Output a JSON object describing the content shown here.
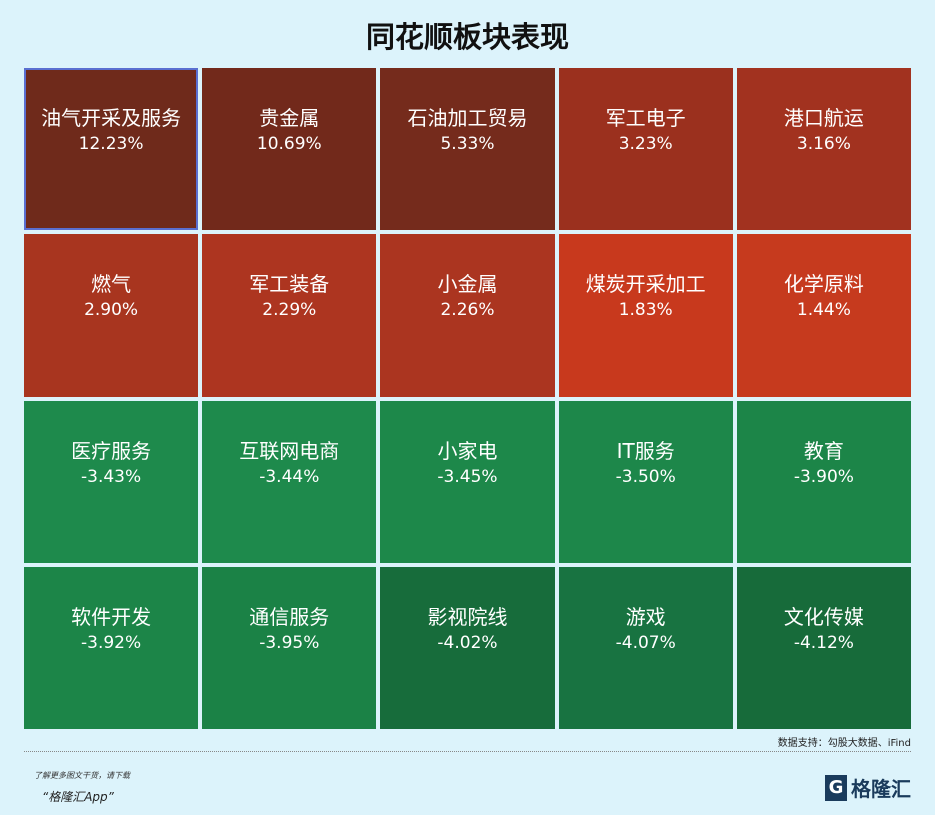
{
  "chart_data": {
    "type": "heatmap",
    "title": "同花顺板块表现",
    "cells": [
      {
        "name": "油气开采及服务",
        "value": "12.23%",
        "color": "#6f2a1b"
      },
      {
        "name": "贵金属",
        "value": "10.69%",
        "color": "#72291b"
      },
      {
        "name": "石油加工贸易",
        "value": "5.33%",
        "color": "#752b1c"
      },
      {
        "name": "军工电子",
        "value": "3.23%",
        "color": "#9b301e"
      },
      {
        "name": "港口航运",
        "value": "3.16%",
        "color": "#a2321f"
      },
      {
        "name": "燃气",
        "value": "2.90%",
        "color": "#a8351f"
      },
      {
        "name": "军工装备",
        "value": "2.29%",
        "color": "#ad3520"
      },
      {
        "name": "小金属",
        "value": "2.26%",
        "color": "#ab3520"
      },
      {
        "name": "煤炭开采加工",
        "value": "1.83%",
        "color": "#c8391d"
      },
      {
        "name": "化学原料",
        "value": "1.44%",
        "color": "#c63a1e"
      },
      {
        "name": "医疗服务",
        "value": "-3.43%",
        "color": "#1e8a4c"
      },
      {
        "name": "互联网电商",
        "value": "-3.44%",
        "color": "#1e8a4c"
      },
      {
        "name": "小家电",
        "value": "-3.45%",
        "color": "#1d884a"
      },
      {
        "name": "IT服务",
        "value": "-3.50%",
        "color": "#1d874a"
      },
      {
        "name": "教育",
        "value": "-3.90%",
        "color": "#1c8548"
      },
      {
        "name": "软件开发",
        "value": "-3.92%",
        "color": "#1c8548"
      },
      {
        "name": "通信服务",
        "value": "-3.95%",
        "color": "#1b8246"
      },
      {
        "name": "影视院线",
        "value": "-4.02%",
        "color": "#176c3b"
      },
      {
        "name": "游戏",
        "value": "-4.07%",
        "color": "#187341"
      },
      {
        "name": "文化传媒",
        "value": "-4.12%",
        "color": "#176b3a"
      }
    ]
  },
  "footer": {
    "source": "数据支持：勾股大数据、iFind",
    "promo_line1": "了解更多图文干货，请下载",
    "promo_line2": "“格隆汇App”",
    "logo_mark": "G",
    "logo_text": "格隆汇"
  }
}
